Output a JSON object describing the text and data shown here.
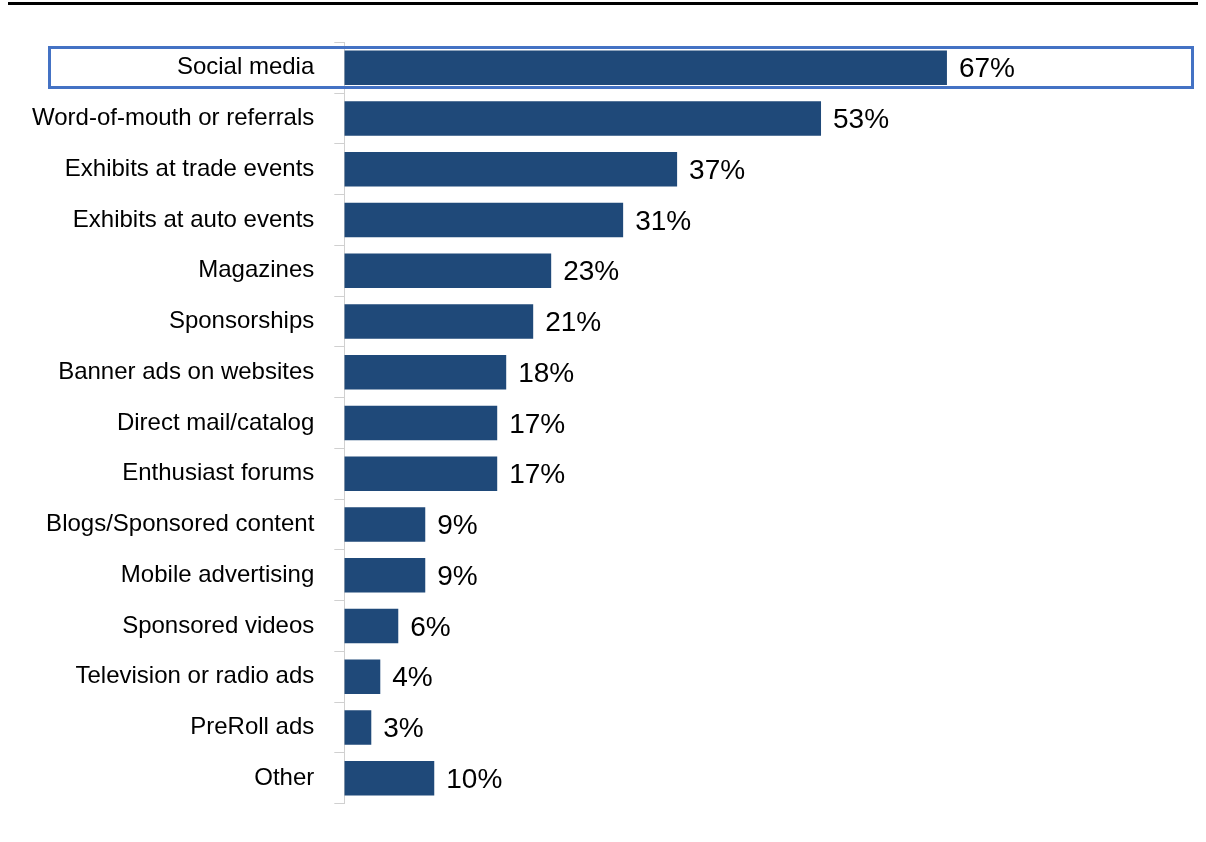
{
  "chart_data": {
    "type": "bar",
    "orientation": "horizontal",
    "data_labels": true,
    "grid": false,
    "legend": false,
    "categories": [
      "Social media",
      "Word-of-mouth or referrals",
      "Exhibits at trade events",
      "Exhibits at auto events",
      "Magazines",
      "Sponsorships",
      "Banner ads on websites",
      "Direct mail/catalog",
      "Enthusiast forums",
      "Blogs/Sponsored content",
      "Mobile advertising",
      "Sponsored videos",
      "Television or radio ads",
      "PreRoll ads",
      "Other"
    ],
    "values": [
      67,
      53,
      37,
      31,
      23,
      21,
      18,
      17,
      17,
      9,
      9,
      6,
      4,
      3,
      10
    ],
    "value_labels": [
      "67%",
      "53%",
      "37%",
      "31%",
      "23%",
      "21%",
      "18%",
      "17%",
      "17%",
      "9%",
      "9%",
      "6%",
      "4%",
      "3%",
      "10%"
    ],
    "color": "#1f4979"
  }
}
